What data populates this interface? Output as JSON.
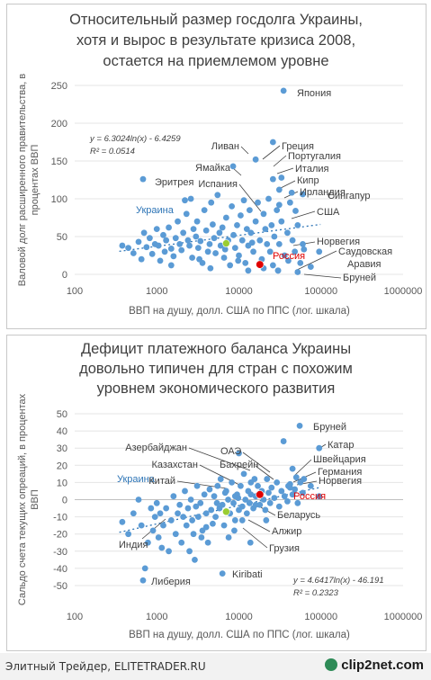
{
  "chart_data": [
    {
      "type": "scatter",
      "title_lines": [
        "Относительный размер госдолга Украины,",
        "хотя и вырос в результате кризиса 2008,",
        "остается на приемлемом уровне"
      ],
      "xlabel": "ВВП на душу, долл. США по ППС (лог. шкала)",
      "ylabel_lines": [
        "Валовой долг расширенного правительства, в",
        "процентах ВВП"
      ],
      "x_scale": "log",
      "xlim": [
        100,
        1000000
      ],
      "ylim": [
        0,
        250
      ],
      "x_ticks": [
        100,
        1000,
        10000,
        100000,
        1000000
      ],
      "x_tick_labels": [
        "100",
        "1000",
        "10000",
        "100000",
        "1000000"
      ],
      "y_ticks": [
        0,
        50,
        100,
        150,
        200,
        250
      ],
      "y_tick_labels": [
        "0",
        "50",
        "100",
        "150",
        "200",
        "250"
      ],
      "grid": "horizontal",
      "equation_lines": [
        "y = 6.3024ln(x) - 6.4259",
        "R² = 0.0514"
      ],
      "trendline": {
        "a": 6.3024,
        "b": -6.4259
      },
      "colors": {
        "points": "#5b9bd5",
        "ukraine": "#9acd32",
        "russia": "#e00000",
        "ukraine_label": "#2e75b6",
        "russia_label": "#e00000"
      },
      "highlight_points": [
        {
          "label": "Украина",
          "x": 7000,
          "y": 41,
          "kind": "ukraine"
        },
        {
          "label": "Россия",
          "x": 18000,
          "y": 13,
          "kind": "russia"
        }
      ],
      "labeled_points": [
        {
          "label": "Япония",
          "x": 35000,
          "y": 243
        },
        {
          "label": "Греция",
          "x": 26000,
          "y": 175
        },
        {
          "label": "Ливан",
          "x": 16000,
          "y": 152
        },
        {
          "label": "Португалия",
          "x": 26000,
          "y": 126
        },
        {
          "label": "Ямайка",
          "x": 8500,
          "y": 143
        },
        {
          "label": "Италия",
          "x": 33000,
          "y": 128
        },
        {
          "label": "Эритрея",
          "x": 680,
          "y": 126
        },
        {
          "label": "Кипр",
          "x": 31000,
          "y": 112
        },
        {
          "label": "Испания",
          "x": 31000,
          "y": 92
        },
        {
          "label": "Ирландия",
          "x": 44000,
          "y": 108
        },
        {
          "label": "Сингапур",
          "x": 60000,
          "y": 106
        },
        {
          "label": "США",
          "x": 49000,
          "y": 84
        },
        {
          "label": "Норвегия",
          "x": 62000,
          "y": 33
        },
        {
          "label": "Саудовская",
          "x": 30000,
          "y": 5
        },
        {
          "label": "Аравия",
          "x": 30000,
          "y": 5
        },
        {
          "label": "Бруней",
          "x": 52000,
          "y": 3
        }
      ],
      "points": [
        [
          380,
          38
        ],
        [
          450,
          35
        ],
        [
          520,
          28
        ],
        [
          600,
          43
        ],
        [
          650,
          20
        ],
        [
          700,
          55
        ],
        [
          750,
          36
        ],
        [
          820,
          48
        ],
        [
          880,
          27
        ],
        [
          950,
          40
        ],
        [
          1000,
          60
        ],
        [
          1050,
          38
        ],
        [
          1100,
          18
        ],
        [
          1200,
          52
        ],
        [
          1250,
          30
        ],
        [
          1300,
          45
        ],
        [
          1400,
          62
        ],
        [
          1500,
          34
        ],
        [
          1600,
          24
        ],
        [
          1700,
          48
        ],
        [
          1800,
          70
        ],
        [
          1900,
          40
        ],
        [
          2000,
          32
        ],
        [
          2100,
          55
        ],
        [
          2200,
          98
        ],
        [
          2300,
          80
        ],
        [
          2400,
          45
        ],
        [
          2500,
          38
        ],
        [
          2600,
          100
        ],
        [
          2700,
          22
        ],
        [
          2800,
          60
        ],
        [
          3000,
          50
        ],
        [
          3100,
          70
        ],
        [
          3200,
          35
        ],
        [
          3400,
          44
        ],
        [
          3600,
          15
        ],
        [
          3800,
          85
        ],
        [
          4000,
          58
        ],
        [
          4200,
          30
        ],
        [
          4400,
          40
        ],
        [
          4600,
          95
        ],
        [
          4800,
          66
        ],
        [
          5000,
          48
        ],
        [
          5200,
          28
        ],
        [
          5500,
          105
        ],
        [
          5800,
          55
        ],
        [
          6000,
          38
        ],
        [
          6300,
          62
        ],
        [
          6600,
          22
        ],
        [
          7000,
          75
        ],
        [
          7400,
          45
        ],
        [
          7800,
          12
        ],
        [
          8200,
          90
        ],
        [
          8600,
          52
        ],
        [
          9000,
          35
        ],
        [
          9500,
          65
        ],
        [
          10000,
          25
        ],
        [
          10500,
          78
        ],
        [
          11000,
          45
        ],
        [
          11500,
          98
        ],
        [
          12000,
          15
        ],
        [
          12500,
          60
        ],
        [
          13000,
          38
        ],
        [
          13500,
          85
        ],
        [
          14000,
          55
        ],
        [
          15000,
          30
        ],
        [
          16000,
          70
        ],
        [
          17000,
          95
        ],
        [
          18000,
          45
        ],
        [
          19000,
          20
        ],
        [
          20000,
          80
        ],
        [
          21000,
          60
        ],
        [
          22000,
          40
        ],
        [
          23000,
          100
        ],
        [
          24000,
          30
        ],
        [
          25000,
          65
        ],
        [
          27000,
          50
        ],
        [
          29000,
          85
        ],
        [
          31000,
          40
        ],
        [
          33000,
          70
        ],
        [
          36000,
          25
        ],
        [
          39000,
          55
        ],
        [
          42000,
          95
        ],
        [
          45000,
          45
        ],
        [
          48000,
          30
        ],
        [
          52000,
          65
        ],
        [
          56000,
          15
        ],
        [
          60000,
          40
        ],
        [
          75000,
          10
        ],
        [
          95000,
          30
        ],
        [
          1500,
          12
        ],
        [
          3300,
          20
        ],
        [
          4500,
          8
        ],
        [
          9800,
          18
        ],
        [
          13000,
          5
        ],
        [
          20000,
          8
        ],
        [
          26000,
          12
        ],
        [
          40000,
          18
        ],
        [
          14500,
          42
        ],
        [
          6800,
          33
        ]
      ]
    },
    {
      "type": "scatter",
      "title_lines": [
        "Дефицит платежного баланса Украины",
        "довольно типичен для стран с похожим",
        "уровнем экономического развития"
      ],
      "xlabel": "ВВП на душу, долл. США по ППС (лог. шкала)",
      "ylabel_lines": [
        "Сальдо счета текущих опреаций, в процентах",
        "ВВП"
      ],
      "x_scale": "log",
      "xlim": [
        100,
        1000000
      ],
      "ylim": [
        -50,
        50
      ],
      "x_ticks": [
        100,
        1000,
        10000,
        100000,
        1000000
      ],
      "x_tick_labels": [
        "100",
        "1000",
        "10000",
        "100000",
        "1000000"
      ],
      "y_ticks": [
        -50,
        -40,
        -30,
        -20,
        -10,
        0,
        10,
        20,
        30,
        40,
        50
      ],
      "y_tick_labels": [
        "-50",
        "-40",
        "-30",
        "-20",
        "-10",
        "0",
        "10",
        "20",
        "30",
        "40",
        "50"
      ],
      "grid": "horizontal",
      "equation_lines": [
        "y = 4.6417ln(x) - 46.191",
        "R² = 0.2323"
      ],
      "trendline": {
        "a": 4.6417,
        "b": -46.191
      },
      "colors": {
        "points": "#5b9bd5",
        "ukraine": "#9acd32",
        "russia": "#e00000",
        "ukraine_label": "#2e75b6",
        "russia_label": "#e00000"
      },
      "highlight_points": [
        {
          "label": "Украина",
          "x": 7000,
          "y": -7,
          "kind": "ukraine"
        },
        {
          "label": "Россия",
          "x": 18000,
          "y": 3,
          "kind": "russia"
        }
      ],
      "labeled_points": [
        {
          "label": "Бруней",
          "x": 55000,
          "y": 43
        },
        {
          "label": "Катар",
          "x": 95000,
          "y": 30
        },
        {
          "label": "Азербайджан",
          "x": 10000,
          "y": 27
        },
        {
          "label": "ОАЭ",
          "x": 45000,
          "y": 18
        },
        {
          "label": "Швейцария",
          "x": 50000,
          "y": 13
        },
        {
          "label": "Бахрейн",
          "x": 40000,
          "y": 8
        },
        {
          "label": "Казахстан",
          "x": 14000,
          "y": 3
        },
        {
          "label": "Германия",
          "x": 42000,
          "y": 7
        },
        {
          "label": "Норвегия",
          "x": 62000,
          "y": 12
        },
        {
          "label": "Китай",
          "x": 9000,
          "y": 2
        },
        {
          "label": "Беларусь",
          "x": 16000,
          "y": -3
        },
        {
          "label": "Алжир",
          "x": 11000,
          "y": -12
        },
        {
          "label": "Индия",
          "x": 4000,
          "y": -16
        },
        {
          "label": "Грузия",
          "x": 7500,
          "y": -22
        },
        {
          "label": "Kiribati",
          "x": 6300,
          "y": -43
        },
        {
          "label": "Либерия",
          "x": 680,
          "y": -47
        }
      ],
      "points": [
        [
          380,
          -13
        ],
        [
          450,
          -20
        ],
        [
          520,
          -8
        ],
        [
          600,
          0
        ],
        [
          650,
          -15
        ],
        [
          720,
          -40
        ],
        [
          780,
          -25
        ],
        [
          850,
          -5
        ],
        [
          900,
          -18
        ],
        [
          950,
          -10
        ],
        [
          1000,
          -2
        ],
        [
          1050,
          -22
        ],
        [
          1100,
          -8
        ],
        [
          1200,
          -15
        ],
        [
          1300,
          -5
        ],
        [
          1400,
          -30
        ],
        [
          1500,
          -12
        ],
        [
          1600,
          2
        ],
        [
          1700,
          -20
        ],
        [
          1800,
          -8
        ],
        [
          1900,
          -3
        ],
        [
          2000,
          -25
        ],
        [
          2100,
          -10
        ],
        [
          2200,
          5
        ],
        [
          2300,
          -15
        ],
        [
          2400,
          -5
        ],
        [
          2500,
          -30
        ],
        [
          2600,
          0
        ],
        [
          2700,
          -12
        ],
        [
          2800,
          -20
        ],
        [
          3000,
          -4
        ],
        [
          3100,
          8
        ],
        [
          3200,
          -10
        ],
        [
          3400,
          -2
        ],
        [
          3600,
          -18
        ],
        [
          3800,
          3
        ],
        [
          4000,
          -8
        ],
        [
          4200,
          -25
        ],
        [
          4400,
          6
        ],
        [
          4600,
          -6
        ],
        [
          4800,
          -14
        ],
        [
          5000,
          2
        ],
        [
          5200,
          -10
        ],
        [
          5500,
          8
        ],
        [
          5800,
          -5
        ],
        [
          6000,
          12
        ],
        [
          6300,
          -3
        ],
        [
          6600,
          -15
        ],
        [
          7000,
          5
        ],
        [
          7400,
          0
        ],
        [
          7800,
          -8
        ],
        [
          8200,
          10
        ],
        [
          8600,
          -2
        ],
        [
          9000,
          -12
        ],
        [
          9500,
          3
        ],
        [
          10000,
          -6
        ],
        [
          10500,
          8
        ],
        [
          11000,
          -4
        ],
        [
          11500,
          15
        ],
        [
          12000,
          0
        ],
        [
          12500,
          -8
        ],
        [
          13000,
          5
        ],
        [
          13500,
          -2
        ],
        [
          14000,
          10
        ],
        [
          15000,
          -5
        ],
        [
          16000,
          2
        ],
        [
          17000,
          8
        ],
        [
          18000,
          -3
        ],
        [
          19000,
          5
        ],
        [
          20000,
          0
        ],
        [
          21000,
          -6
        ],
        [
          22000,
          12
        ],
        [
          23000,
          4
        ],
        [
          24000,
          -2
        ],
        [
          25000,
          7
        ],
        [
          27000,
          1
        ],
        [
          29000,
          10
        ],
        [
          31000,
          -4
        ],
        [
          33000,
          5
        ],
        [
          36000,
          2
        ],
        [
          39000,
          -1
        ],
        [
          42000,
          9
        ],
        [
          45000,
          3
        ],
        [
          48000,
          6
        ],
        [
          52000,
          -2
        ],
        [
          56000,
          10
        ],
        [
          60000,
          4
        ],
        [
          75000,
          8
        ],
        [
          95000,
          2
        ],
        [
          1150,
          -28
        ],
        [
          2900,
          -35
        ],
        [
          3500,
          -22
        ],
        [
          8800,
          -18
        ],
        [
          13800,
          -25
        ],
        [
          21500,
          -12
        ],
        [
          5400,
          -2
        ],
        [
          6800,
          4
        ],
        [
          9800,
          1
        ],
        [
          15500,
          12
        ],
        [
          35000,
          34
        ]
      ]
    }
  ],
  "footer": {
    "credit": "Элитный Трейдер, ELITETRADER.RU",
    "logo": "clip2net.com"
  }
}
